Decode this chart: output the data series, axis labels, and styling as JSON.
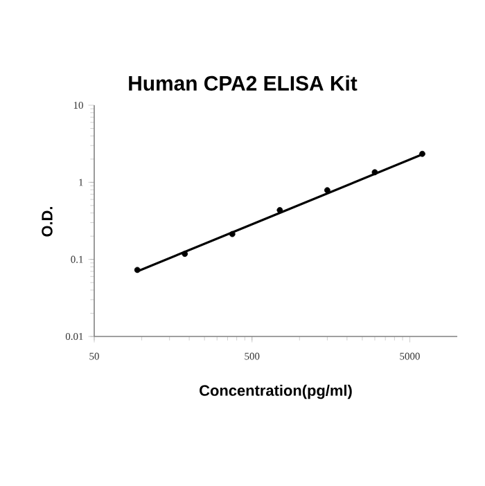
{
  "chart_data": {
    "type": "scatter",
    "title": "Human CPA2 ELISA Kit",
    "xlabel": "Concentration(pg/ml)",
    "ylabel": "O.D.",
    "log": "xy",
    "xlim": [
      50,
      10000
    ],
    "xticks": [
      50,
      500,
      5000
    ],
    "ylim": [
      0.01,
      10
    ],
    "yticks": [
      0.01,
      0.1,
      1,
      10
    ],
    "series": [
      {
        "color": "#000000",
        "marker": "circle",
        "x": [
          93.75,
          187.5,
          375,
          750,
          1500,
          3000,
          6000
        ],
        "values": [
          0.073,
          0.118,
          0.213,
          0.436,
          0.79,
          1.35,
          2.34
        ]
      },
      {
        "type": "line",
        "color": "#000000",
        "marker": "none",
        "line_style": "solid",
        "x": [
          93.75,
          6000
        ],
        "values": [
          0.07,
          2.3
        ]
      }
    ]
  }
}
